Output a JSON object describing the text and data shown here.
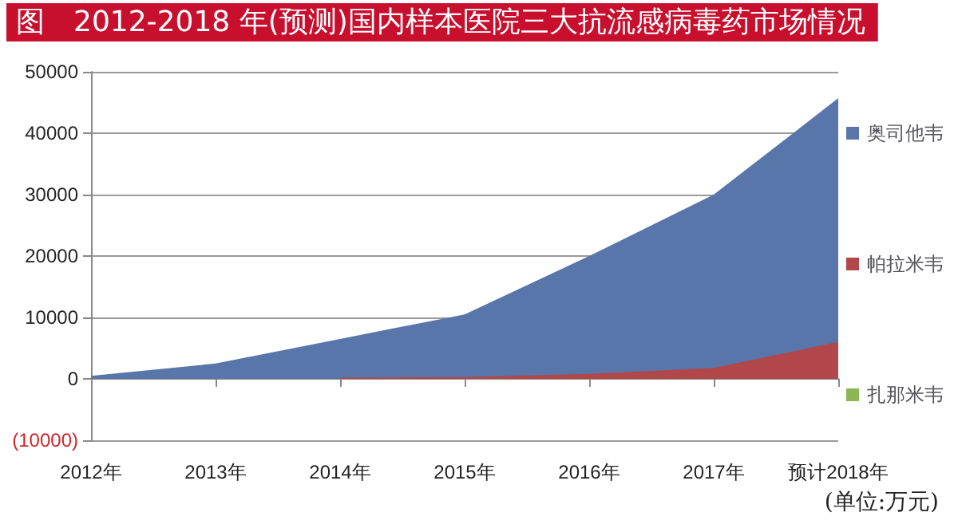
{
  "chart_data": {
    "type": "area",
    "title": "图　2012-2018 年(预测)国内样本医院三大抗流感病毒药市场情况",
    "categories": [
      "2012年",
      "2013年",
      "2014年",
      "2015年",
      "2016年",
      "2017年",
      "预计2018年"
    ],
    "series": [
      {
        "name": "奥司他韦",
        "color": "#5876a9",
        "values": [
          500,
          2500,
          6500,
          10500,
          20000,
          30000,
          45700
        ]
      },
      {
        "name": "帕拉米韦",
        "color": "#b1474b",
        "values": [
          null,
          null,
          200,
          300,
          800,
          1800,
          6000
        ]
      },
      {
        "name": "扎那米韦",
        "color": "#8cb555",
        "values": [
          null,
          null,
          null,
          null,
          null,
          null,
          null
        ]
      }
    ],
    "ylim": [
      -10000,
      50000
    ],
    "yticks": [
      {
        "value": -10000,
        "label": "(10000)"
      },
      0,
      10000,
      20000,
      30000,
      40000,
      50000
    ],
    "grid": "y",
    "legend": "right",
    "annotations": [
      "(单位:万元)"
    ]
  }
}
